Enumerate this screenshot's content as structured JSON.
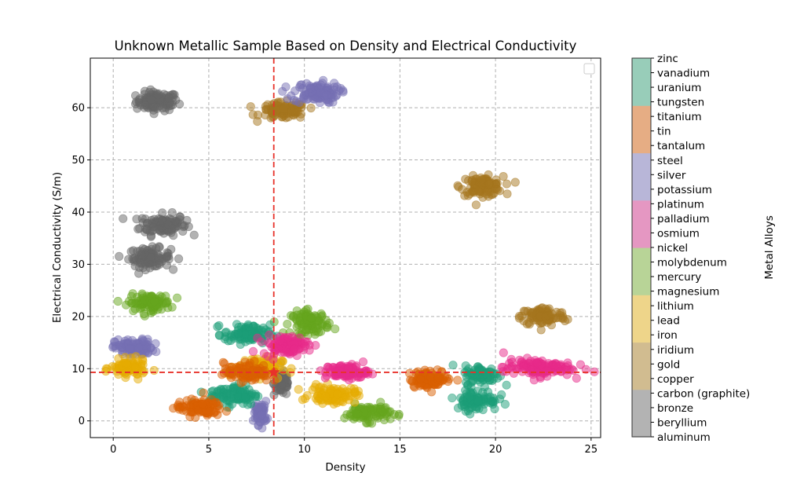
{
  "chart_data": {
    "type": "scatter",
    "title": "Unknown Metallic Sample Based on Density and Electrical Conductivity",
    "xlabel": "Density",
    "ylabel": "Electrical Conductivity (S/m)",
    "xlim": [
      -1.2,
      25.5
    ],
    "ylim": [
      -3.2,
      69.5
    ],
    "xticks": [
      0,
      5,
      10,
      15,
      20,
      25
    ],
    "yticks": [
      0,
      10,
      20,
      30,
      40,
      50,
      60
    ],
    "grid": true,
    "legend": {
      "placement": "top-right",
      "entries": []
    },
    "reference_lines": {
      "vertical_density": 8.4,
      "horizontal_conductivity": 9.3,
      "color": "#e8322a",
      "style": "dashed"
    },
    "unknown_sample": {
      "density": 8.4,
      "conductivity": 9.3,
      "marker": "star",
      "color": "#e8322a"
    },
    "colorbar": {
      "label": "Metal Alloys",
      "ticklabels": [
        "aluminum",
        "beryllium",
        "bronze",
        "carbon (graphite)",
        "copper",
        "gold",
        "iridium",
        "iron",
        "lead",
        "lithium",
        "magnesium",
        "mercury",
        "molybdenum",
        "nickel",
        "osmium",
        "palladium",
        "platinum",
        "potassium",
        "silver",
        "steel",
        "tantalum",
        "tin",
        "titanium",
        "tungsten",
        "uranium",
        "vanadium",
        "zinc"
      ],
      "band_colors": [
        "#b3b3b3",
        "#d1bc90",
        "#eed58a",
        "#b8d497",
        "#e597c2",
        "#b8b6d8",
        "#e6ad84",
        "#98cdb9"
      ]
    },
    "clusters": [
      {
        "name": "gray-cluster-1",
        "color": "#666666",
        "density": 2.3,
        "conductivity": 61.2,
        "sd_x": 0.55,
        "sd_y": 0.9,
        "n": 110
      },
      {
        "name": "gray-cluster-2",
        "color": "#666666",
        "density": 2.6,
        "conductivity": 37.6,
        "sd_x": 0.6,
        "sd_y": 1.0,
        "n": 110
      },
      {
        "name": "gray-cluster-3",
        "color": "#666666",
        "density": 1.9,
        "conductivity": 31.3,
        "sd_x": 0.55,
        "sd_y": 0.9,
        "n": 100
      },
      {
        "name": "gray-cluster-4",
        "color": "#666666",
        "density": 8.85,
        "conductivity": 7.2,
        "sd_x": 0.22,
        "sd_y": 1.2,
        "n": 60
      },
      {
        "name": "brown-cluster-1",
        "color": "#a6761d",
        "density": 8.9,
        "conductivity": 59.4,
        "sd_x": 0.6,
        "sd_y": 0.8,
        "n": 100
      },
      {
        "name": "brown-cluster-2",
        "color": "#a6761d",
        "density": 19.3,
        "conductivity": 45.0,
        "sd_x": 0.55,
        "sd_y": 0.9,
        "n": 100
      },
      {
        "name": "brown-cluster-3",
        "color": "#a6761d",
        "density": 22.5,
        "conductivity": 20.0,
        "sd_x": 0.6,
        "sd_y": 0.9,
        "n": 100
      },
      {
        "name": "purple-cluster-1",
        "color": "#7570b3",
        "density": 10.6,
        "conductivity": 62.9,
        "sd_x": 0.6,
        "sd_y": 1.0,
        "n": 110
      },
      {
        "name": "purple-cluster-2",
        "color": "#7570b3",
        "density": 1.1,
        "conductivity": 14.0,
        "sd_x": 0.5,
        "sd_y": 0.8,
        "n": 100
      },
      {
        "name": "purple-cluster-3",
        "color": "#7570b3",
        "density": 7.7,
        "conductivity": 1.5,
        "sd_x": 0.17,
        "sd_y": 1.1,
        "n": 60
      },
      {
        "name": "green-cluster-1",
        "color": "#66a61e",
        "density": 1.9,
        "conductivity": 22.6,
        "sd_x": 0.55,
        "sd_y": 0.8,
        "n": 100
      },
      {
        "name": "green-cluster-2",
        "color": "#66a61e",
        "density": 10.3,
        "conductivity": 18.8,
        "sd_x": 0.5,
        "sd_y": 1.1,
        "n": 100
      },
      {
        "name": "green-cluster-3",
        "color": "#66a61e",
        "density": 13.3,
        "conductivity": 1.5,
        "sd_x": 0.6,
        "sd_y": 0.8,
        "n": 100
      },
      {
        "name": "yellow-cluster-1",
        "color": "#e6ab02",
        "density": 0.8,
        "conductivity": 10.0,
        "sd_x": 0.45,
        "sd_y": 0.8,
        "n": 90
      },
      {
        "name": "yellow-cluster-2",
        "color": "#e6ab02",
        "density": 11.5,
        "conductivity": 5.0,
        "sd_x": 0.6,
        "sd_y": 0.8,
        "n": 100
      },
      {
        "name": "yellow-cluster-3",
        "color": "#e6ab02",
        "density": 7.6,
        "conductivity": 10.3,
        "sd_x": 0.6,
        "sd_y": 1.0,
        "n": 90
      },
      {
        "name": "teal-cluster-1",
        "color": "#1b9e77",
        "density": 7.0,
        "conductivity": 16.6,
        "sd_x": 0.6,
        "sd_y": 0.9,
        "n": 100
      },
      {
        "name": "teal-cluster-2",
        "color": "#1b9e77",
        "density": 6.3,
        "conductivity": 5.0,
        "sd_x": 0.65,
        "sd_y": 1.0,
        "n": 100
      },
      {
        "name": "teal-cluster-3",
        "color": "#1b9e77",
        "density": 19.3,
        "conductivity": 8.8,
        "sd_x": 0.45,
        "sd_y": 0.9,
        "n": 80
      },
      {
        "name": "teal-cluster-4",
        "color": "#1b9e77",
        "density": 19.0,
        "conductivity": 4.0,
        "sd_x": 0.55,
        "sd_y": 1.0,
        "n": 90
      },
      {
        "name": "pink-cluster-1",
        "color": "#e7298a",
        "density": 9.0,
        "conductivity": 14.5,
        "sd_x": 0.6,
        "sd_y": 0.9,
        "n": 100
      },
      {
        "name": "pink-cluster-2",
        "color": "#e7298a",
        "density": 12.2,
        "conductivity": 9.4,
        "sd_x": 0.55,
        "sd_y": 0.7,
        "n": 100
      },
      {
        "name": "pink-cluster-3",
        "color": "#e7298a",
        "density": 22.2,
        "conductivity": 10.2,
        "sd_x": 0.9,
        "sd_y": 0.8,
        "n": 130
      },
      {
        "name": "orange-cluster-1",
        "color": "#d95f02",
        "density": 4.5,
        "conductivity": 2.5,
        "sd_x": 0.6,
        "sd_y": 0.8,
        "n": 100
      },
      {
        "name": "orange-cluster-2",
        "color": "#d95f02",
        "density": 7.0,
        "conductivity": 9.3,
        "sd_x": 0.6,
        "sd_y": 0.9,
        "n": 90
      },
      {
        "name": "orange-cluster-3",
        "color": "#d95f02",
        "density": 16.6,
        "conductivity": 8.0,
        "sd_x": 0.55,
        "sd_y": 0.8,
        "n": 100
      }
    ]
  }
}
